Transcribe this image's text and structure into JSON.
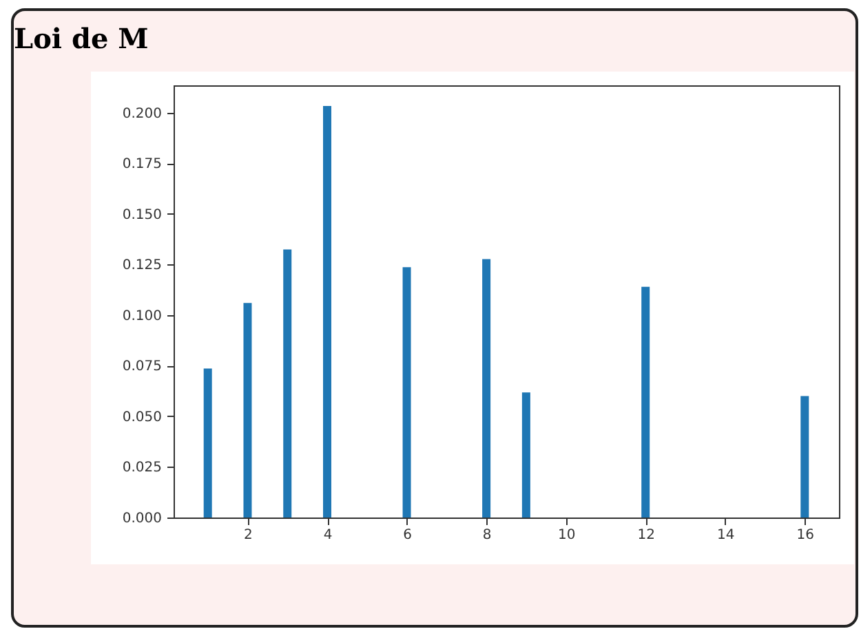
{
  "chart_data": {
    "type": "bar",
    "title": "Loi de M",
    "x": [
      1,
      2,
      3,
      4,
      6,
      8,
      9,
      12,
      16
    ],
    "values": [
      0.0736,
      0.106,
      0.1325,
      0.2034,
      0.1237,
      0.1277,
      0.0618,
      0.114,
      0.06
    ],
    "color": "#1f77b4",
    "xlim": [
      0.14,
      16.86
    ],
    "xticks": [
      2,
      4,
      6,
      8,
      10,
      12,
      14,
      16
    ],
    "ylim": [
      0,
      0.2136
    ],
    "yticks": [
      {
        "value": 0,
        "label": "0.000"
      },
      {
        "value": 0.025,
        "label": "0.025"
      },
      {
        "value": 0.05,
        "label": "0.050"
      },
      {
        "value": 0.075,
        "label": "0.075"
      },
      {
        "value": 0.1,
        "label": "0.100"
      },
      {
        "value": 0.125,
        "label": "0.125"
      },
      {
        "value": 0.15,
        "label": "0.150"
      },
      {
        "value": 0.175,
        "label": "0.175"
      },
      {
        "value": 0.2,
        "label": "0.200"
      }
    ],
    "grid": false
  }
}
